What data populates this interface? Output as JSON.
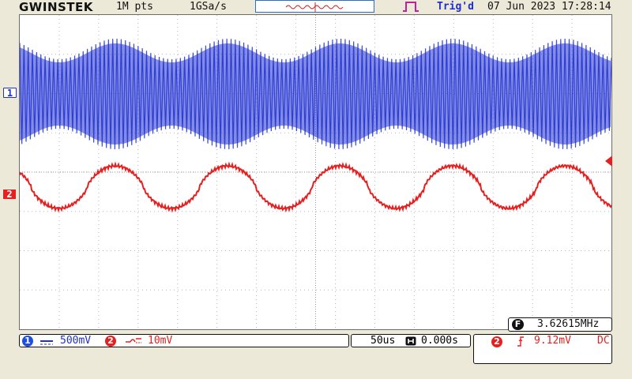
{
  "header": {
    "brand": "GWINSTEK",
    "record_length": "1M pts",
    "sample_rate": "1GSa/s",
    "trigger_status": "Trig'd",
    "datetime": "07 Jun 2023 17:28:14"
  },
  "channels": {
    "ch1_marker": "1",
    "ch2_marker": "2"
  },
  "status_bar": {
    "ch1_number": "1",
    "ch1_scale": "500mV",
    "ch2_number": "2",
    "ch2_scale": "10mV",
    "timebase": "50us",
    "horizontal_position": "0.000s",
    "trigger_source": "2",
    "trigger_level": "9.12mV",
    "trigger_coupling": "DC"
  },
  "measurement": {
    "badge": "F",
    "frequency": "3.62615MHz"
  },
  "colors": {
    "ch1": "#1f2fd0",
    "ch2": "#e52020",
    "screen_bg": "#ffffff",
    "frame_bg": "#ece9d8"
  },
  "icons": {
    "memory_bar": "memory-position-icon",
    "trigger_position": "trigger-position-icon",
    "trigger_type": "pulse-trigger-icon",
    "coupling_ch1": "dc-coupling-icon",
    "coupling_ch2": "ac-coupling-icon",
    "horizontal": "horizontal-position-icon",
    "trigger_edge": "rising-edge-icon"
  },
  "waveforms": {
    "ch1": {
      "type": "AM",
      "modulation_cycles": 5,
      "modulation_period_us": 75,
      "carrier_cycles_shown": 140
    },
    "ch2": {
      "type": "modulating",
      "cycles": 5,
      "period_us": 75
    }
  }
}
